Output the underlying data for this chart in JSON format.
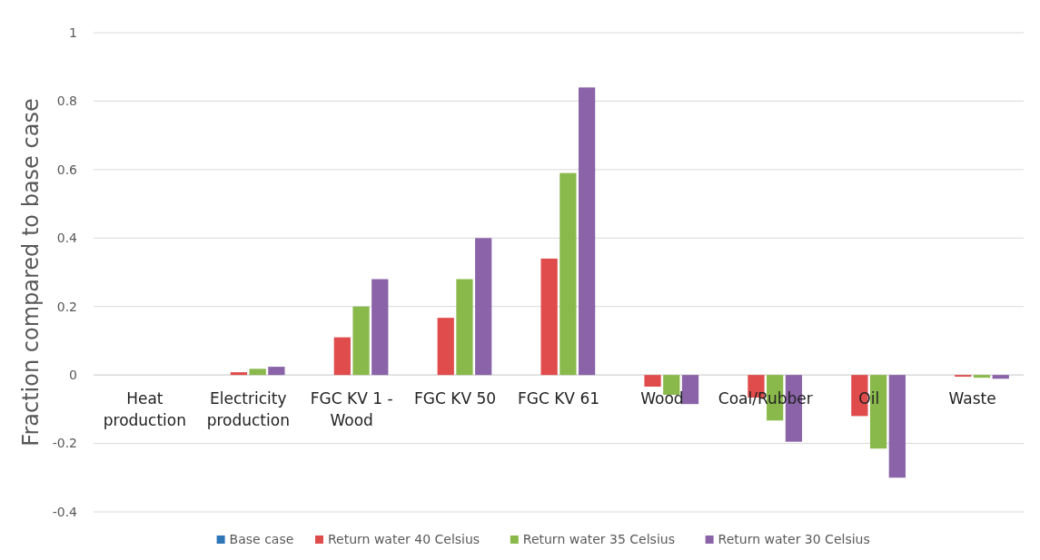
{
  "chart_data": {
    "type": "bar",
    "ylabel": "Fraction compared to base case",
    "categories": [
      "Heat\nproduction",
      "Electricity\nproduction",
      "FGC KV 1 -\nWood",
      "FGC KV 50",
      "FGC KV 61",
      "Wood",
      "Coal/Rubber",
      "Oil",
      "Waste"
    ],
    "series": [
      {
        "name": "Base case",
        "color": "#2e75b6",
        "values": [
          0,
          0,
          0,
          0,
          0,
          0,
          0,
          0,
          0
        ]
      },
      {
        "name": "Return water 40 Celsius",
        "color": "#e04b4b",
        "values": [
          0,
          0.008,
          0.11,
          0.167,
          0.34,
          -0.034,
          -0.066,
          -0.12,
          -0.005
        ]
      },
      {
        "name": "Return water 35 Celsius",
        "color": "#8ab94b",
        "values": [
          0,
          0.018,
          0.2,
          0.28,
          0.59,
          -0.058,
          -0.133,
          -0.215,
          -0.008
        ]
      },
      {
        "name": "Return water 30 Celsius",
        "color": "#8a63a8",
        "values": [
          0,
          0.024,
          0.28,
          0.4,
          0.84,
          -0.085,
          -0.195,
          -0.3,
          -0.011
        ]
      }
    ],
    "ylim": [
      -0.4,
      1
    ],
    "yticks": [
      -0.4,
      -0.2,
      0,
      0.2,
      0.4,
      0.6,
      0.8,
      1
    ],
    "grid": "y",
    "legend": "bottom"
  }
}
